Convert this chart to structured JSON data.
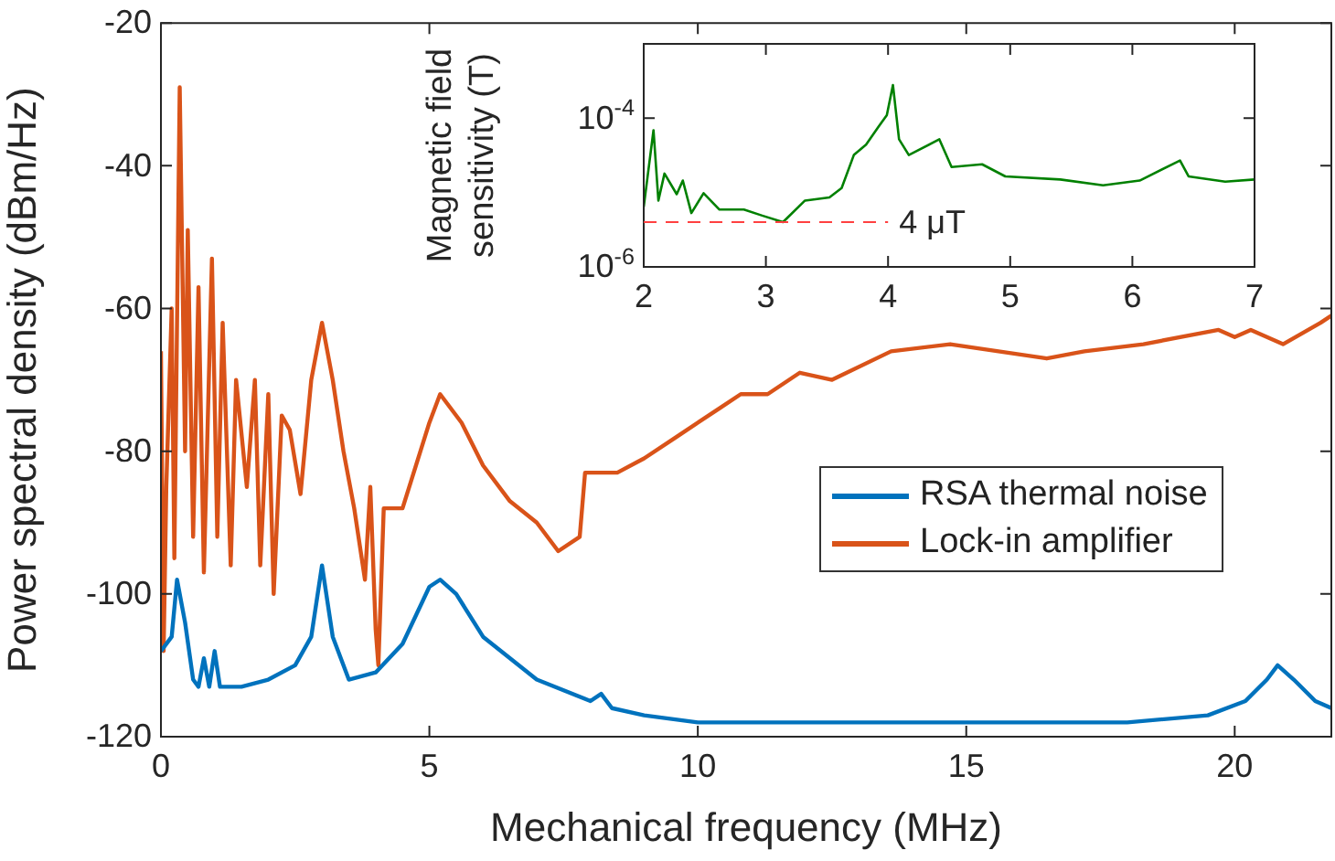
{
  "chart_data": [
    {
      "type": "line",
      "xlabel": "Mechanical frequency (MHz)",
      "ylabel": "Power spectral density (dBm/Hz)",
      "xlim": [
        0,
        21.8
      ],
      "xticks": [
        0,
        5,
        10,
        15,
        20
      ],
      "ylim": [
        -120,
        -20
      ],
      "yticks": [
        -120,
        -100,
        -80,
        -60,
        -40,
        -20
      ],
      "grid": false,
      "legend": "right",
      "marker": "none",
      "line_style": "solid",
      "series": [
        {
          "name": "RSA thermal noise",
          "color": "#0072bd",
          "x": [
            0,
            0.2,
            0.3,
            0.45,
            0.6,
            0.7,
            0.8,
            0.9,
            1.0,
            1.1,
            1.3,
            1.5,
            2.0,
            2.5,
            2.8,
            3.0,
            3.2,
            3.5,
            4.0,
            4.5,
            5.0,
            5.2,
            5.5,
            6.0,
            7.0,
            8.0,
            8.2,
            8.4,
            9.0,
            10.0,
            12.0,
            15.0,
            18.0,
            19.5,
            20.2,
            20.6,
            20.8,
            21.1,
            21.5,
            21.8
          ],
          "values": [
            -108,
            -106,
            -98,
            -104,
            -112,
            -113,
            -109,
            -113,
            -108,
            -113,
            -113,
            -113,
            -112,
            -110,
            -106,
            -96,
            -106,
            -112,
            -111,
            -107,
            -99,
            -98,
            -100,
            -106,
            -112,
            -115,
            -114,
            -116,
            -117,
            -118,
            -118,
            -118,
            -118,
            -117,
            -115,
            -112,
            -110,
            -112,
            -115,
            -116
          ]
        },
        {
          "name": "Lock-in amplifier",
          "color": "#d95319",
          "x": [
            0,
            0.05,
            0.1,
            0.2,
            0.25,
            0.35,
            0.45,
            0.5,
            0.6,
            0.7,
            0.8,
            0.95,
            1.05,
            1.15,
            1.3,
            1.4,
            1.6,
            1.75,
            1.85,
            2.0,
            2.1,
            2.25,
            2.4,
            2.6,
            2.8,
            3.0,
            3.2,
            3.4,
            3.6,
            3.8,
            3.9,
            4.0,
            4.05,
            4.15,
            4.5,
            5.0,
            5.2,
            5.6,
            6.0,
            6.5,
            7.0,
            7.4,
            7.8,
            7.9,
            8.5,
            9.0,
            9.6,
            10.4,
            10.8,
            11.3,
            11.9,
            12.5,
            13.6,
            14.7,
            15.6,
            16.5,
            17.2,
            18.3,
            19.7,
            20.0,
            20.3,
            20.9,
            21.6,
            21.8
          ],
          "values": [
            -66,
            -108,
            -85,
            -60,
            -95,
            -29,
            -80,
            -49,
            -92,
            -57,
            -97,
            -53,
            -92,
            -62,
            -96,
            -70,
            -85,
            -70,
            -96,
            -72,
            -100,
            -75,
            -77,
            -86,
            -70,
            -62,
            -70,
            -80,
            -88,
            -98,
            -85,
            -105,
            -110,
            -88,
            -88,
            -76,
            -72,
            -76,
            -82,
            -87,
            -90,
            -94,
            -92,
            -83,
            -83,
            -81,
            -78,
            -74,
            -72,
            -72,
            -69,
            -70,
            -66,
            -65,
            -66,
            -67,
            -66,
            -65,
            -63,
            -64,
            -63,
            -65,
            -62,
            -61
          ]
        }
      ]
    },
    {
      "type": "line",
      "ylabel": "Magnetic field sensitivity (T)",
      "log": "y",
      "xlim": [
        2,
        7
      ],
      "xticks": [
        2,
        3,
        4,
        5,
        6,
        7
      ],
      "ylim": [
        1e-06,
        0.001
      ],
      "yticks": [
        {
          "value": 1e-06,
          "label": "10$^{-6}$"
        },
        {
          "value": 0.0001,
          "label": "10$^{-4}$"
        }
      ],
      "grid": false,
      "marker": "none",
      "ref_lines": [
        {
          "axis": "y",
          "value": 4e-06,
          "label": "4 μT",
          "color": "#ff4040",
          "line_style": "dashed"
        }
      ],
      "series": [
        {
          "color": "#008000",
          "x": [
            2,
            2.08,
            2.12,
            2.17,
            2.27,
            2.32,
            2.39,
            2.49,
            2.62,
            2.82,
            2.97,
            3.14,
            3.32,
            3.52,
            3.62,
            3.72,
            3.82,
            3.92,
            3.99,
            4.04,
            4.09,
            4.17,
            4.42,
            4.52,
            4.77,
            4.96,
            5.41,
            5.76,
            6.06,
            6.39,
            6.46,
            6.76,
            7
          ],
          "values": [
            6.4e-06,
            6.9e-05,
            7.8e-06,
            1.8e-05,
            9.5e-06,
            1.45e-05,
            5.3e-06,
            9.8e-06,
            5.9e-06,
            5.9e-06,
            4.9e-06,
            4e-06,
            7.8e-06,
            8.6e-06,
            1.15e-05,
            3.2e-05,
            4.4e-05,
            7.6e-05,
            0.00011,
            0.00028,
            5.2e-05,
            3.2e-05,
            5.2e-05,
            2.2e-05,
            2.4e-05,
            1.65e-05,
            1.5e-05,
            1.25e-05,
            1.45e-05,
            2.7e-05,
            1.65e-05,
            1.4e-05,
            1.5e-05
          ]
        }
      ]
    }
  ]
}
